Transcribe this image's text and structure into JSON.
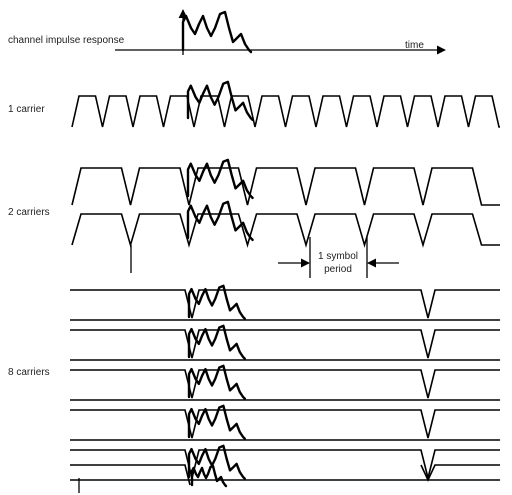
{
  "labels": {
    "channel_impulse_response": "channel impulse response",
    "time": "time",
    "one_carrier": "1 carrier",
    "two_carriers": "2 carriers",
    "eight_carriers": "8 carriers",
    "symbol_period_line1": "1 symbol",
    "symbol_period_line2": "period"
  }
}
